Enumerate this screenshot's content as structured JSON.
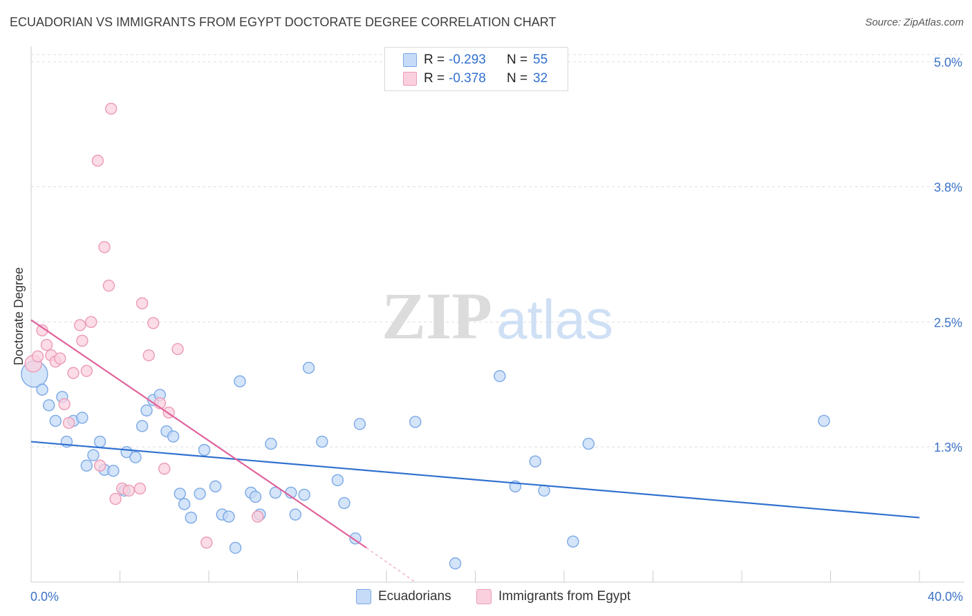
{
  "header": {
    "title": "ECUADORIAN VS IMMIGRANTS FROM EGYPT DOCTORATE DEGREE CORRELATION CHART",
    "source": "Source: ZipAtlas.com"
  },
  "watermark": {
    "zip": "ZIP",
    "atlas": "atlas"
  },
  "legend": {
    "rows": [
      {
        "r_label": "R = ",
        "r_value": "-0.293",
        "n_label": "N = ",
        "n_value": "55"
      },
      {
        "r_label": "R = ",
        "r_value": "-0.378",
        "n_label": "N = ",
        "n_value": "32"
      }
    ]
  },
  "bottom_legend": [
    "Ecuadorians",
    "Immigrants from Egypt"
  ],
  "colors": {
    "blue_fill": "#c6dbf7",
    "blue_stroke": "#7aa8e6",
    "blue_line": "#2f6fcf",
    "pink_fill": "#fbd0de",
    "pink_stroke": "#eb9ab6",
    "pink_line": "#e0609a",
    "axis_value": "#3a72c8",
    "grid": "#dedede"
  },
  "chart_data": {
    "type": "scatter",
    "title": "ECUADORIAN VS IMMIGRANTS FROM EGYPT DOCTORATE DEGREE CORRELATION CHART",
    "xlabel": "",
    "ylabel": "Doctorate Degree",
    "xlim": [
      0,
      40
    ],
    "ylim": [
      0,
      5.15
    ],
    "x_tick_labels": [
      "0.0%",
      "40.0%"
    ],
    "y_ticks": [
      1.3,
      2.5,
      3.8,
      5.0
    ],
    "y_tick_labels": [
      "1.3%",
      "2.5%",
      "3.8%",
      "5.0%"
    ],
    "grid": "horizontal dashed",
    "legend_placement": "top-center",
    "series": [
      {
        "name": "Ecuadorians",
        "color": "#7aa8e6",
        "trend": {
          "x": [
            0,
            40
          ],
          "y": [
            1.35,
            0.62
          ]
        },
        "points": [
          [
            0.15,
            2.0
          ],
          [
            0.5,
            1.85
          ],
          [
            0.8,
            1.7
          ],
          [
            1.1,
            1.55
          ],
          [
            1.4,
            1.78
          ],
          [
            1.6,
            1.35
          ],
          [
            1.9,
            1.55
          ],
          [
            2.3,
            1.58
          ],
          [
            2.5,
            1.12
          ],
          [
            2.8,
            1.22
          ],
          [
            3.1,
            1.35
          ],
          [
            3.3,
            1.08
          ],
          [
            3.7,
            1.07
          ],
          [
            4.2,
            0.88
          ],
          [
            4.3,
            1.25
          ],
          [
            4.7,
            1.2
          ],
          [
            5.0,
            1.5
          ],
          [
            5.2,
            1.65
          ],
          [
            5.5,
            1.75
          ],
          [
            5.8,
            1.8
          ],
          [
            6.1,
            1.45
          ],
          [
            6.4,
            1.4
          ],
          [
            6.7,
            0.85
          ],
          [
            6.9,
            0.75
          ],
          [
            7.2,
            0.62
          ],
          [
            7.6,
            0.85
          ],
          [
            7.8,
            1.27
          ],
          [
            8.3,
            0.92
          ],
          [
            8.6,
            0.65
          ],
          [
            8.9,
            0.63
          ],
          [
            9.2,
            0.33
          ],
          [
            9.4,
            1.93
          ],
          [
            9.9,
            0.86
          ],
          [
            10.1,
            0.82
          ],
          [
            10.3,
            0.65
          ],
          [
            10.8,
            1.33
          ],
          [
            11.0,
            0.86
          ],
          [
            11.7,
            0.86
          ],
          [
            11.9,
            0.65
          ],
          [
            12.3,
            0.84
          ],
          [
            12.5,
            2.06
          ],
          [
            13.1,
            1.35
          ],
          [
            13.8,
            0.98
          ],
          [
            14.1,
            0.76
          ],
          [
            14.6,
            0.42
          ],
          [
            14.8,
            1.52
          ],
          [
            17.3,
            1.54
          ],
          [
            19.1,
            0.18
          ],
          [
            21.1,
            1.98
          ],
          [
            21.8,
            0.92
          ],
          [
            22.7,
            1.16
          ],
          [
            23.1,
            0.88
          ],
          [
            24.4,
            0.39
          ],
          [
            25.1,
            1.33
          ],
          [
            35.7,
            1.55
          ]
        ]
      },
      {
        "name": "Immigrants from Egypt",
        "color": "#eb9ab6",
        "trend": {
          "x": [
            0,
            15.1
          ],
          "y": [
            2.52,
            0.33
          ]
        },
        "trend_extension": {
          "x": [
            15.1,
            17.3
          ],
          "y": [
            0.33,
            0.0
          ]
        },
        "points": [
          [
            0.1,
            2.1
          ],
          [
            0.3,
            2.17
          ],
          [
            0.5,
            2.42
          ],
          [
            0.7,
            2.28
          ],
          [
            0.9,
            2.18
          ],
          [
            1.1,
            2.12
          ],
          [
            1.3,
            2.15
          ],
          [
            1.5,
            1.71
          ],
          [
            1.7,
            1.53
          ],
          [
            1.9,
            2.01
          ],
          [
            2.2,
            2.47
          ],
          [
            2.3,
            2.32
          ],
          [
            2.5,
            2.03
          ],
          [
            2.7,
            2.5
          ],
          [
            3.0,
            4.05
          ],
          [
            3.1,
            1.12
          ],
          [
            3.3,
            3.22
          ],
          [
            3.5,
            2.85
          ],
          [
            3.6,
            4.55
          ],
          [
            3.8,
            0.8
          ],
          [
            4.1,
            0.9
          ],
          [
            4.4,
            0.88
          ],
          [
            4.9,
            0.9
          ],
          [
            5.0,
            2.68
          ],
          [
            5.3,
            2.18
          ],
          [
            5.5,
            2.49
          ],
          [
            5.8,
            1.72
          ],
          [
            6.0,
            1.09
          ],
          [
            6.2,
            1.63
          ],
          [
            6.6,
            2.24
          ],
          [
            7.9,
            0.38
          ],
          [
            10.2,
            0.63
          ]
        ]
      }
    ]
  }
}
